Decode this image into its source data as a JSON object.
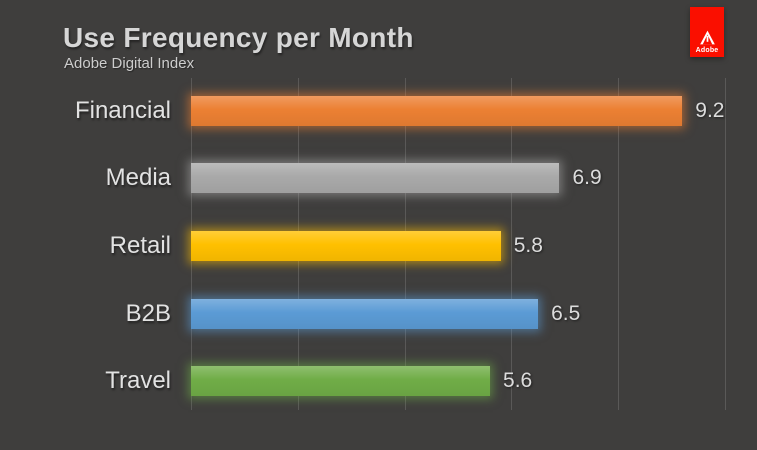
{
  "slide": {
    "title": "Use Frequency per Month",
    "subtitle": "Adobe Digital Index",
    "background_color": "#3f3e3d",
    "title_color": "#d6d6d6"
  },
  "logo": {
    "brand": "Adobe",
    "tag_color": "#fa0f00",
    "mark_color": "#ffffff"
  },
  "chart_data": {
    "type": "bar",
    "orientation": "horizontal",
    "title": "Use Frequency per Month",
    "subtitle": "Adobe Digital Index",
    "categories": [
      "Financial",
      "Media",
      "Retail",
      "B2B",
      "Travel"
    ],
    "values": [
      9.2,
      6.9,
      5.8,
      6.5,
      5.6
    ],
    "value_labels": [
      "9.2",
      "6.9",
      "5.8",
      "6.5",
      "5.6"
    ],
    "bar_colors": [
      "#ec8033",
      "#a9a9a9",
      "#ffc000",
      "#5b9bd5",
      "#70ad47"
    ],
    "xlim": [
      0,
      10
    ],
    "gridline_interval": 2,
    "grid": true,
    "gridline_color": "rgba(255,255,255,0.14)",
    "legend": "none",
    "label_color": "#e2e2e2",
    "value_label_color": "#dcdcdc"
  }
}
